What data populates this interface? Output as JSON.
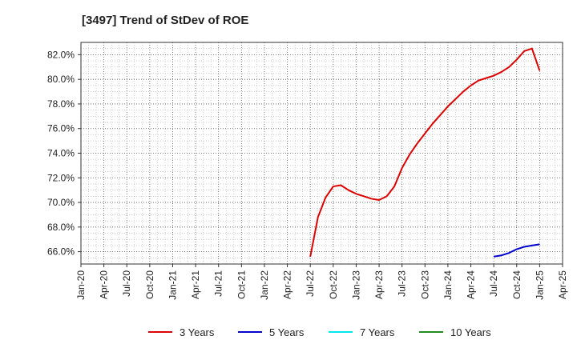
{
  "chart_data": {
    "type": "line",
    "title": "[3497]  Trend of StDev of ROE",
    "xlabel": "",
    "ylabel": "",
    "x_ticks": [
      "Jan-20",
      "Apr-20",
      "Jul-20",
      "Oct-20",
      "Jan-21",
      "Apr-21",
      "Jul-21",
      "Oct-21",
      "Jan-22",
      "Apr-22",
      "Jul-22",
      "Oct-22",
      "Jan-23",
      "Apr-23",
      "Jul-23",
      "Oct-23",
      "Jan-24",
      "Apr-24",
      "Jul-24",
      "Oct-24",
      "Jan-25",
      "Apr-25"
    ],
    "y_ticks": [
      "66.0%",
      "68.0%",
      "70.0%",
      "72.0%",
      "74.0%",
      "76.0%",
      "78.0%",
      "80.0%",
      "82.0%"
    ],
    "xlim": [
      "2020-01",
      "2025-04"
    ],
    "ylim": [
      65.0,
      83.0
    ],
    "grid": true,
    "legend": "bottom",
    "series": [
      {
        "name": "3 Years",
        "color": "#dd0000",
        "points": [
          [
            "2022-07",
            65.6
          ],
          [
            "2022-08",
            68.8
          ],
          [
            "2022-09",
            70.4
          ],
          [
            "2022-10",
            71.3
          ],
          [
            "2022-11",
            71.4
          ],
          [
            "2022-12",
            71.0
          ],
          [
            "2023-01",
            70.7
          ],
          [
            "2023-02",
            70.5
          ],
          [
            "2023-03",
            70.3
          ],
          [
            "2023-04",
            70.2
          ],
          [
            "2023-05",
            70.5
          ],
          [
            "2023-06",
            71.3
          ],
          [
            "2023-07",
            72.8
          ],
          [
            "2023-08",
            73.9
          ],
          [
            "2023-09",
            74.8
          ],
          [
            "2023-10",
            75.6
          ],
          [
            "2023-11",
            76.4
          ],
          [
            "2023-12",
            77.1
          ],
          [
            "2024-01",
            77.8
          ],
          [
            "2024-02",
            78.4
          ],
          [
            "2024-03",
            79.0
          ],
          [
            "2024-04",
            79.5
          ],
          [
            "2024-05",
            79.9
          ],
          [
            "2024-06",
            80.1
          ],
          [
            "2024-07",
            80.3
          ],
          [
            "2024-08",
            80.6
          ],
          [
            "2024-09",
            81.0
          ],
          [
            "2024-10",
            81.6
          ],
          [
            "2024-11",
            82.3
          ],
          [
            "2024-12",
            82.5
          ],
          [
            "2025-01",
            80.7
          ]
        ]
      },
      {
        "name": "5 Years",
        "color": "#0000cc",
        "points": [
          [
            "2024-07",
            65.6
          ],
          [
            "2024-08",
            65.7
          ],
          [
            "2024-09",
            65.9
          ],
          [
            "2024-10",
            66.2
          ],
          [
            "2024-11",
            66.4
          ],
          [
            "2024-12",
            66.5
          ],
          [
            "2025-01",
            66.6
          ]
        ]
      },
      {
        "name": "7 Years",
        "color": "#00e5ee",
        "points": []
      },
      {
        "name": "10 Years",
        "color": "#228b22",
        "points": []
      }
    ]
  }
}
